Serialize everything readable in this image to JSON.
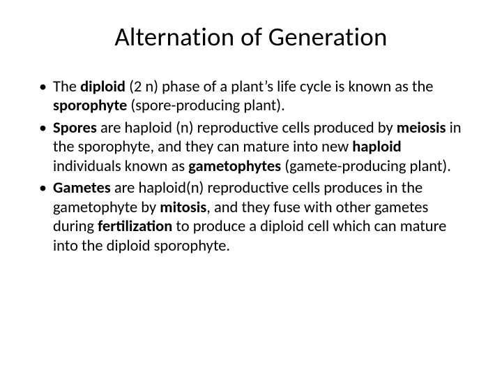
{
  "slide": {
    "title": "Alternation of Generation",
    "title_fontsize": 37,
    "body_fontsize": 22.5,
    "background_color": "#ffffff",
    "text_color": "#000000",
    "font_family": "Calibri",
    "bullets": [
      {
        "runs": [
          {
            "t": "The ",
            "b": false
          },
          {
            "t": "diploid ",
            "b": true
          },
          {
            "t": "(2 n) phase of a plant’s life cycle is known as the ",
            "b": false
          },
          {
            "t": "sporophyte ",
            "b": true
          },
          {
            "t": "(spore-producing plant).",
            "b": false
          }
        ]
      },
      {
        "runs": [
          {
            "t": "Spores ",
            "b": true
          },
          {
            "t": "are haploid (n) reproductive cells produced by ",
            "b": false
          },
          {
            "t": "meiosis ",
            "b": true
          },
          {
            "t": "in the sporophyte, and they can mature into new ",
            "b": false
          },
          {
            "t": "haploid ",
            "b": true
          },
          {
            "t": "individuals known as ",
            "b": false
          },
          {
            "t": "gametophytes ",
            "b": true
          },
          {
            "t": "(gamete-producing plant).",
            "b": false
          }
        ]
      },
      {
        "runs": [
          {
            "t": "Gametes ",
            "b": true
          },
          {
            "t": "are haploid(n) reproductive cells produces in the gametophyte by ",
            "b": false
          },
          {
            "t": "mitosis",
            "b": true
          },
          {
            "t": ", and they fuse with other gametes during ",
            "b": false
          },
          {
            "t": "fertilization ",
            "b": true
          },
          {
            "t": "to produce a diploid cell which can mature into the diploid sporophyte.",
            "b": false
          }
        ]
      }
    ]
  }
}
